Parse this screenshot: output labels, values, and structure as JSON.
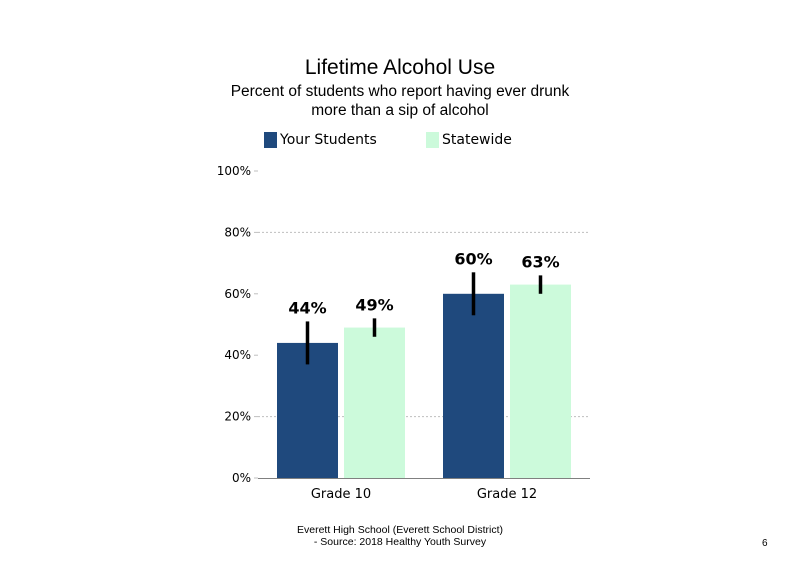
{
  "chart_data": {
    "type": "bar",
    "title": "Lifetime Alcohol Use",
    "subtitle_lines": [
      "Percent of students who report having ever drunk",
      "more than a sip of alcohol"
    ],
    "categories": [
      "Grade 10",
      "Grade 12"
    ],
    "series": [
      {
        "name": "Your Students",
        "color": "#1f497d",
        "values": [
          44,
          60
        ],
        "labels": [
          "44%",
          "60%"
        ],
        "error_low": [
          37,
          53
        ],
        "error_high": [
          51,
          67
        ]
      },
      {
        "name": "Statewide",
        "color": "#ccfadb",
        "values": [
          49,
          63
        ],
        "labels": [
          "49%",
          "63%"
        ],
        "error_low": [
          46,
          60
        ],
        "error_high": [
          52,
          66
        ]
      }
    ],
    "ylim": [
      0,
      100
    ],
    "yticks": [
      0,
      20,
      40,
      60,
      80,
      100
    ],
    "ytick_labels": [
      "0%",
      "20%",
      "40%",
      "60%",
      "80%",
      "100%"
    ],
    "gridlines": "dashed at 20%, 80%",
    "legend_position": "top",
    "xlabel": "",
    "ylabel": ""
  },
  "footer": {
    "line1": "Everett High  School (Everett School District)",
    "line2": "- Source: 2018 Healthy  Youth Survey"
  },
  "page_number": "6"
}
